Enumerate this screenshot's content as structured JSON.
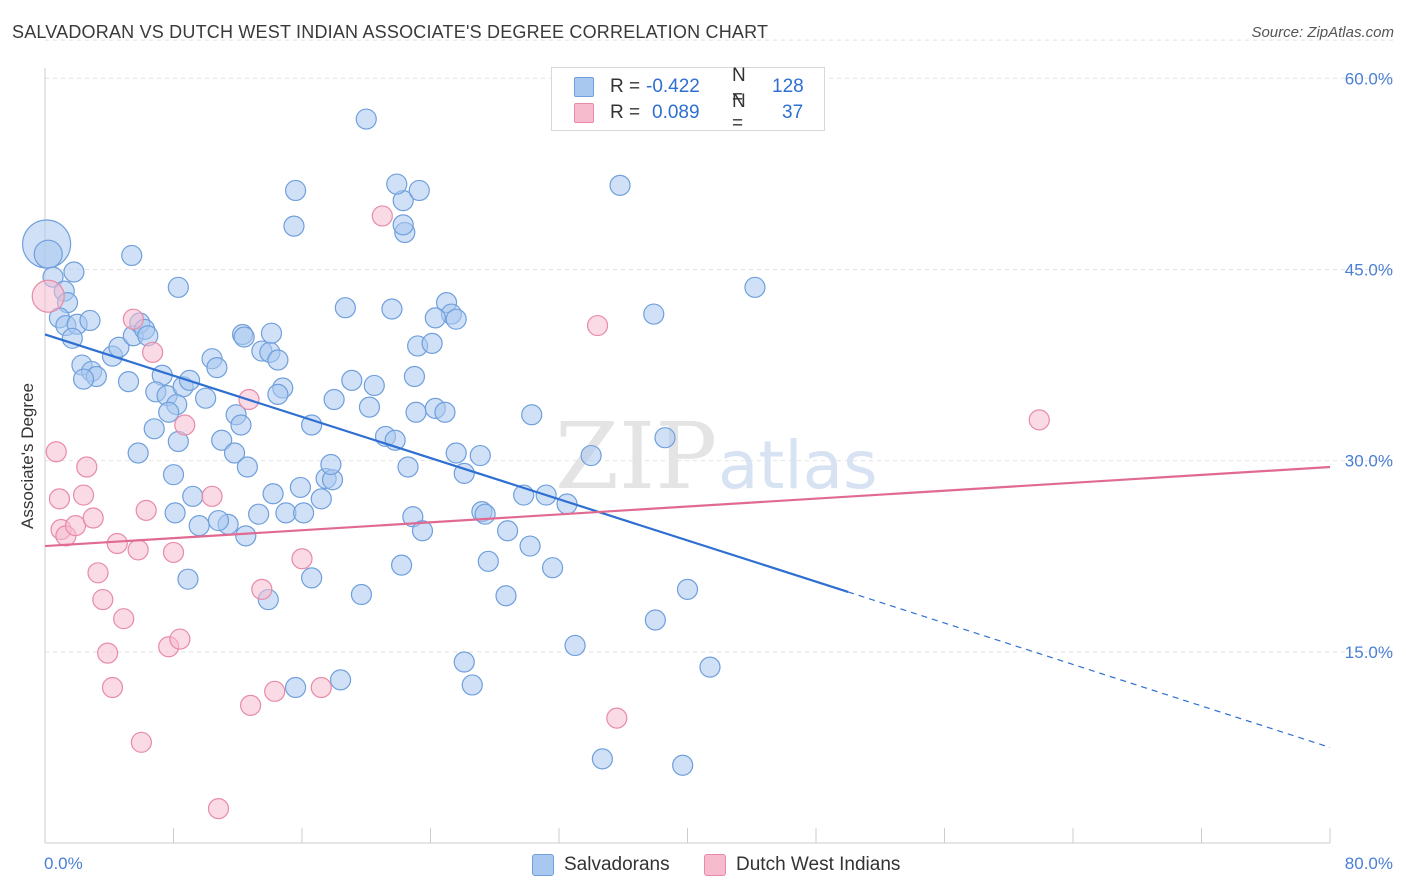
{
  "title": "SALVADORAN VS DUTCH WEST INDIAN ASSOCIATE'S DEGREE CORRELATION CHART",
  "source": "Source: ZipAtlas.com",
  "watermark": {
    "zip": "ZIP",
    "atlas": "atlas"
  },
  "legend_top": [
    {
      "r_label": "R =",
      "r_value": "-0.422",
      "n_label": "N =",
      "n_value": "128"
    },
    {
      "r_label": "R =",
      "r_value": "0.089",
      "n_label": "N =",
      "n_value": "37"
    }
  ],
  "legend_bottom": [
    "Salvadorans",
    "Dutch West Indians"
  ],
  "colors": {
    "blue_fill": "#a9c8f0",
    "blue_stroke": "#6f9fdc",
    "blue_line": "#2e6fd1",
    "pink_fill": "#f6bccd",
    "pink_stroke": "#e88aa8",
    "pink_line": "#e06a92",
    "grid": "#e2e2e2",
    "axis_text": "#4a7fd4"
  },
  "chart_data": {
    "type": "scatter",
    "title": "SALVADORAN VS DUTCH WEST INDIAN ASSOCIATE'S DEGREE CORRELATION CHART",
    "xlabel": "",
    "ylabel": "Associate's Degree",
    "xlim": [
      0,
      80
    ],
    "ylim": [
      0,
      63
    ],
    "x_tick_labels": [
      "0.0%",
      "80.0%"
    ],
    "y_ticks": [
      15,
      30,
      45,
      60
    ],
    "y_tick_labels": [
      "15.0%",
      "30.0%",
      "45.0%",
      "60.0%"
    ],
    "grid": true,
    "legend_position": "top-center",
    "series": [
      {
        "name": "Salvadorans",
        "r": -0.422,
        "n": 128,
        "trend": {
          "x0": 0,
          "y0": 39.9,
          "x1": 50,
          "y1": 19.7,
          "dash_to_x": 80,
          "dash_to_y": 7.5
        },
        "points": [
          [
            0.1,
            47.0,
            24
          ],
          [
            0.2,
            46.2,
            14
          ],
          [
            0.5,
            44.4,
            10
          ],
          [
            1.2,
            43.3,
            10
          ],
          [
            1.4,
            42.4,
            10
          ],
          [
            1.8,
            44.8,
            10
          ],
          [
            0.9,
            41.2,
            10
          ],
          [
            1.3,
            40.6,
            10
          ],
          [
            2.0,
            40.7,
            10
          ],
          [
            2.8,
            41.0,
            10
          ],
          [
            1.7,
            39.6,
            10
          ],
          [
            2.3,
            37.5,
            10
          ],
          [
            2.9,
            37.0,
            10
          ],
          [
            3.2,
            36.6,
            10
          ],
          [
            2.4,
            36.4,
            10
          ],
          [
            4.2,
            38.2,
            10
          ],
          [
            4.6,
            38.9,
            10
          ],
          [
            5.5,
            39.8,
            10
          ],
          [
            5.9,
            40.8,
            10
          ],
          [
            6.2,
            40.3,
            10
          ],
          [
            6.4,
            39.8,
            10
          ],
          [
            7.3,
            36.7,
            10
          ],
          [
            5.2,
            36.2,
            10
          ],
          [
            6.9,
            35.4,
            10
          ],
          [
            7.6,
            35.1,
            10
          ],
          [
            8.6,
            35.8,
            10
          ],
          [
            9.0,
            36.3,
            10
          ],
          [
            10.0,
            34.9,
            10
          ],
          [
            8.2,
            34.4,
            10
          ],
          [
            10.4,
            38.0,
            10
          ],
          [
            10.7,
            37.3,
            10
          ],
          [
            11.9,
            33.6,
            10
          ],
          [
            12.2,
            32.8,
            10
          ],
          [
            11.0,
            31.6,
            10
          ],
          [
            12.3,
            39.9,
            10
          ],
          [
            12.4,
            39.7,
            10
          ],
          [
            13.5,
            38.6,
            10
          ],
          [
            14.0,
            38.5,
            10
          ],
          [
            14.1,
            40.0,
            10
          ],
          [
            14.5,
            37.9,
            10
          ],
          [
            14.8,
            35.7,
            10
          ],
          [
            14.5,
            35.2,
            10
          ],
          [
            7.7,
            33.8,
            10
          ],
          [
            6.8,
            32.5,
            10
          ],
          [
            5.8,
            30.6,
            10
          ],
          [
            8.3,
            31.5,
            10
          ],
          [
            8.0,
            28.9,
            10
          ],
          [
            9.2,
            27.2,
            10
          ],
          [
            8.1,
            25.9,
            10
          ],
          [
            11.8,
            30.6,
            10
          ],
          [
            12.6,
            29.5,
            10
          ],
          [
            11.4,
            25.0,
            10
          ],
          [
            12.5,
            24.1,
            10
          ],
          [
            13.3,
            25.8,
            10
          ],
          [
            14.2,
            27.4,
            10
          ],
          [
            15.0,
            25.9,
            10
          ],
          [
            15.9,
            27.9,
            10
          ],
          [
            16.6,
            32.8,
            10
          ],
          [
            17.5,
            28.6,
            10
          ],
          [
            17.9,
            28.5,
            10
          ],
          [
            17.8,
            29.7,
            10
          ],
          [
            17.2,
            27.0,
            10
          ],
          [
            16.1,
            25.9,
            10
          ],
          [
            18.0,
            34.8,
            10
          ],
          [
            19.1,
            36.3,
            10
          ],
          [
            20.2,
            34.2,
            10
          ],
          [
            20.5,
            35.9,
            10
          ],
          [
            21.2,
            31.9,
            10
          ],
          [
            21.8,
            31.6,
            10
          ],
          [
            22.6,
            29.5,
            10
          ],
          [
            23.0,
            36.6,
            10
          ],
          [
            23.2,
            39.0,
            10
          ],
          [
            23.1,
            33.8,
            10
          ],
          [
            24.1,
            39.2,
            10
          ],
          [
            24.3,
            34.1,
            10
          ],
          [
            24.9,
            33.8,
            10
          ],
          [
            25.6,
            30.6,
            10
          ],
          [
            22.4,
            47.9,
            10
          ],
          [
            22.3,
            50.4,
            10
          ],
          [
            23.3,
            51.2,
            10
          ],
          [
            25.0,
            42.4,
            10
          ],
          [
            25.3,
            41.5,
            10
          ],
          [
            25.6,
            41.1,
            10
          ],
          [
            24.3,
            41.2,
            10
          ],
          [
            22.9,
            25.6,
            10
          ],
          [
            23.5,
            24.5,
            10
          ],
          [
            22.2,
            21.8,
            10
          ],
          [
            19.7,
            19.5,
            10
          ],
          [
            18.4,
            12.8,
            10
          ],
          [
            16.6,
            20.8,
            10
          ],
          [
            15.6,
            12.2,
            10
          ],
          [
            15.6,
            51.2,
            10
          ],
          [
            15.5,
            48.4,
            10
          ],
          [
            18.7,
            42.0,
            10
          ],
          [
            20.0,
            56.8,
            10
          ],
          [
            21.9,
            51.7,
            10
          ],
          [
            21.6,
            41.9,
            10
          ],
          [
            22.3,
            48.5,
            10
          ],
          [
            13.9,
            19.1,
            10
          ],
          [
            8.9,
            20.7,
            10
          ],
          [
            9.6,
            24.9,
            10
          ],
          [
            10.8,
            25.3,
            10
          ],
          [
            26.1,
            29.0,
            10
          ],
          [
            27.1,
            30.4,
            10
          ],
          [
            27.2,
            26.0,
            10
          ],
          [
            27.4,
            25.8,
            10
          ],
          [
            28.8,
            24.5,
            10
          ],
          [
            27.6,
            22.1,
            10
          ],
          [
            28.7,
            19.4,
            10
          ],
          [
            26.1,
            14.2,
            10
          ],
          [
            26.6,
            12.4,
            10
          ],
          [
            30.3,
            33.6,
            10
          ],
          [
            29.8,
            27.3,
            10
          ],
          [
            31.6,
            21.6,
            10
          ],
          [
            31.2,
            27.3,
            10
          ],
          [
            32.5,
            26.6,
            10
          ],
          [
            30.2,
            23.3,
            10
          ],
          [
            34.0,
            30.4,
            10
          ],
          [
            35.8,
            51.6,
            10
          ],
          [
            37.9,
            41.5,
            10
          ],
          [
            38.6,
            31.8,
            10
          ],
          [
            38.0,
            17.5,
            10
          ],
          [
            40.0,
            19.9,
            10
          ],
          [
            41.4,
            13.8,
            10
          ],
          [
            33.0,
            15.5,
            10
          ],
          [
            34.7,
            6.6,
            10
          ],
          [
            39.7,
            6.1,
            10
          ],
          [
            44.2,
            43.6,
            10
          ],
          [
            5.4,
            46.1,
            10
          ],
          [
            8.3,
            43.6,
            10
          ]
        ]
      },
      {
        "name": "Dutch West Indians",
        "r": 0.089,
        "n": 37,
        "trend": {
          "x0": 0,
          "y0": 23.3,
          "x1": 80,
          "y1": 29.5
        },
        "points": [
          [
            0.2,
            42.9,
            16
          ],
          [
            0.7,
            30.7,
            10
          ],
          [
            0.9,
            27.0,
            10
          ],
          [
            1.0,
            24.6,
            10
          ],
          [
            1.3,
            24.1,
            10
          ],
          [
            1.9,
            24.9,
            10
          ],
          [
            2.4,
            27.3,
            10
          ],
          [
            2.6,
            29.5,
            10
          ],
          [
            3.0,
            25.5,
            10
          ],
          [
            3.3,
            21.2,
            10
          ],
          [
            3.6,
            19.1,
            10
          ],
          [
            3.9,
            14.9,
            10
          ],
          [
            4.2,
            12.2,
            10
          ],
          [
            4.5,
            23.5,
            10
          ],
          [
            4.9,
            17.6,
            10
          ],
          [
            5.5,
            41.1,
            10
          ],
          [
            5.8,
            23.0,
            10
          ],
          [
            6.0,
            7.9,
            10
          ],
          [
            6.3,
            26.1,
            10
          ],
          [
            6.7,
            38.5,
            10
          ],
          [
            7.7,
            15.4,
            10
          ],
          [
            8.0,
            22.8,
            10
          ],
          [
            8.4,
            16.0,
            10
          ],
          [
            8.7,
            32.8,
            10
          ],
          [
            10.4,
            27.2,
            10
          ],
          [
            10.8,
            2.7,
            10
          ],
          [
            12.8,
            10.8,
            10
          ],
          [
            12.7,
            34.8,
            10
          ],
          [
            13.5,
            19.9,
            10
          ],
          [
            14.3,
            11.9,
            10
          ],
          [
            16.0,
            22.3,
            10
          ],
          [
            17.2,
            12.2,
            10
          ],
          [
            21.0,
            49.2,
            10
          ],
          [
            34.4,
            40.6,
            10
          ],
          [
            35.6,
            9.8,
            10
          ],
          [
            61.9,
            33.2,
            10
          ]
        ]
      }
    ]
  }
}
